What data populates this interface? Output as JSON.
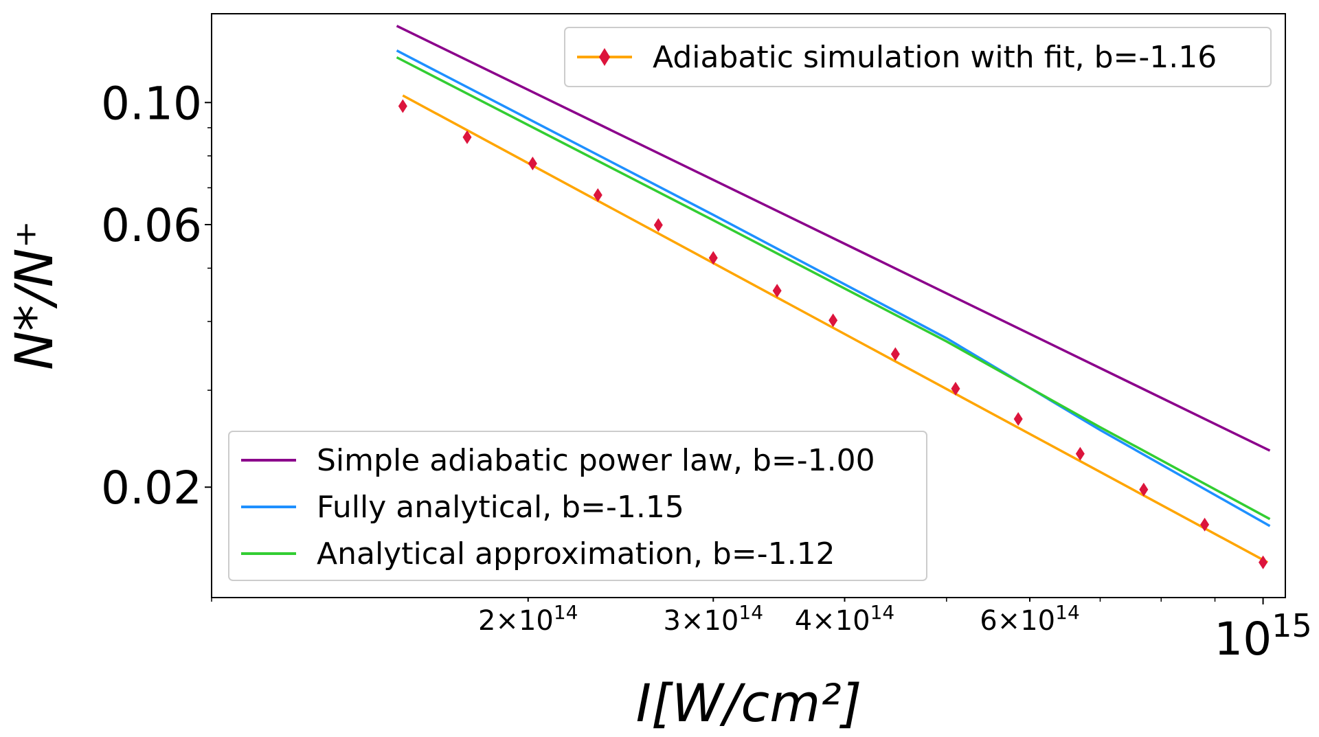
{
  "chart_data": {
    "type": "line",
    "xlabel": "I[W/cm²]",
    "ylabel": "N*/N⁺",
    "x_scale": "log",
    "y_scale": "log",
    "xlim": [
      100000000000000.0,
      1050000000000000.0
    ],
    "ylim": [
      0.0126,
      0.145
    ],
    "grid": false,
    "x_ticks": [
      {
        "value": 200000000000000.0,
        "mantissa": "2",
        "times": "×10",
        "exp": "14"
      },
      {
        "value": 300000000000000.0,
        "mantissa": "3",
        "times": "×10",
        "exp": "14"
      },
      {
        "value": 400000000000000.0,
        "mantissa": "4",
        "times": "×10",
        "exp": "14"
      },
      {
        "value": 600000000000000.0,
        "mantissa": "6",
        "times": "×10",
        "exp": "14"
      },
      {
        "value": 1000000000000000.0,
        "mantissa": "",
        "times": "10",
        "exp": "15"
      }
    ],
    "y_ticks": [
      {
        "value": 0.02,
        "label": "0.02"
      },
      {
        "value": 0.06,
        "label": "0.06"
      },
      {
        "value": 0.1,
        "label": "0.10"
      }
    ],
    "legends": [
      {
        "placement": "upper-right",
        "entries": [
          "Adiabatic simulation with fit, b=-1.16"
        ]
      },
      {
        "placement": "lower-left",
        "entries": [
          "Simple adiabatic power law, b=-1.00",
          "Fully analytical, b=-1.15",
          "Analytical approximation, b=-1.12"
        ]
      }
    ],
    "series": [
      {
        "name": "Simple adiabatic power law, b=-1.00",
        "kind": "line",
        "color": "#8B008B",
        "x": [
          150000000000000.0,
          1015000000000000.0
        ],
        "y": [
          0.1378,
          0.0233
        ]
      },
      {
        "name": "Fully analytical, b=-1.15",
        "kind": "line",
        "color": "#1E90FF",
        "x": [
          150000000000000.0,
          300000000000000.0,
          500000000000000.0,
          700000000000000.0,
          1015000000000000.0
        ],
        "y": [
          0.1243,
          0.0625,
          0.0373,
          0.0254,
          0.017
        ]
      },
      {
        "name": "Analytical approximation, b=-1.12",
        "kind": "line",
        "color": "#32CD32",
        "x": [
          150000000000000.0,
          300000000000000.0,
          500000000000000.0,
          700000000000000.0,
          1015000000000000.0
        ],
        "y": [
          0.1208,
          0.0611,
          0.0368,
          0.0257,
          0.0175
        ]
      },
      {
        "name": "Adiabatic simulation with fit, b=-1.16",
        "kind": "fit",
        "color": "#FFA500",
        "marker_color": "#DC143C",
        "marker": "diamond",
        "x": [
          152000000000000.0,
          1010000000000000.0
        ],
        "y": [
          0.103,
          0.0146
        ],
        "points_x": [
          152000000000000.0,
          175000000000000.0,
          202000000000000.0,
          233000000000000.0,
          266000000000000.0,
          300000000000000.0,
          345000000000000.0,
          390000000000000.0,
          447000000000000.0,
          510000000000000.0,
          585000000000000.0,
          670000000000000.0,
          770000000000000.0,
          880000000000000.0,
          1000000000000000.0
        ],
        "points_y": [
          0.0985,
          0.0865,
          0.0775,
          0.0679,
          0.0599,
          0.0522,
          0.0455,
          0.0402,
          0.0349,
          0.0302,
          0.0266,
          0.023,
          0.0198,
          0.0171,
          0.0146
        ]
      }
    ]
  }
}
